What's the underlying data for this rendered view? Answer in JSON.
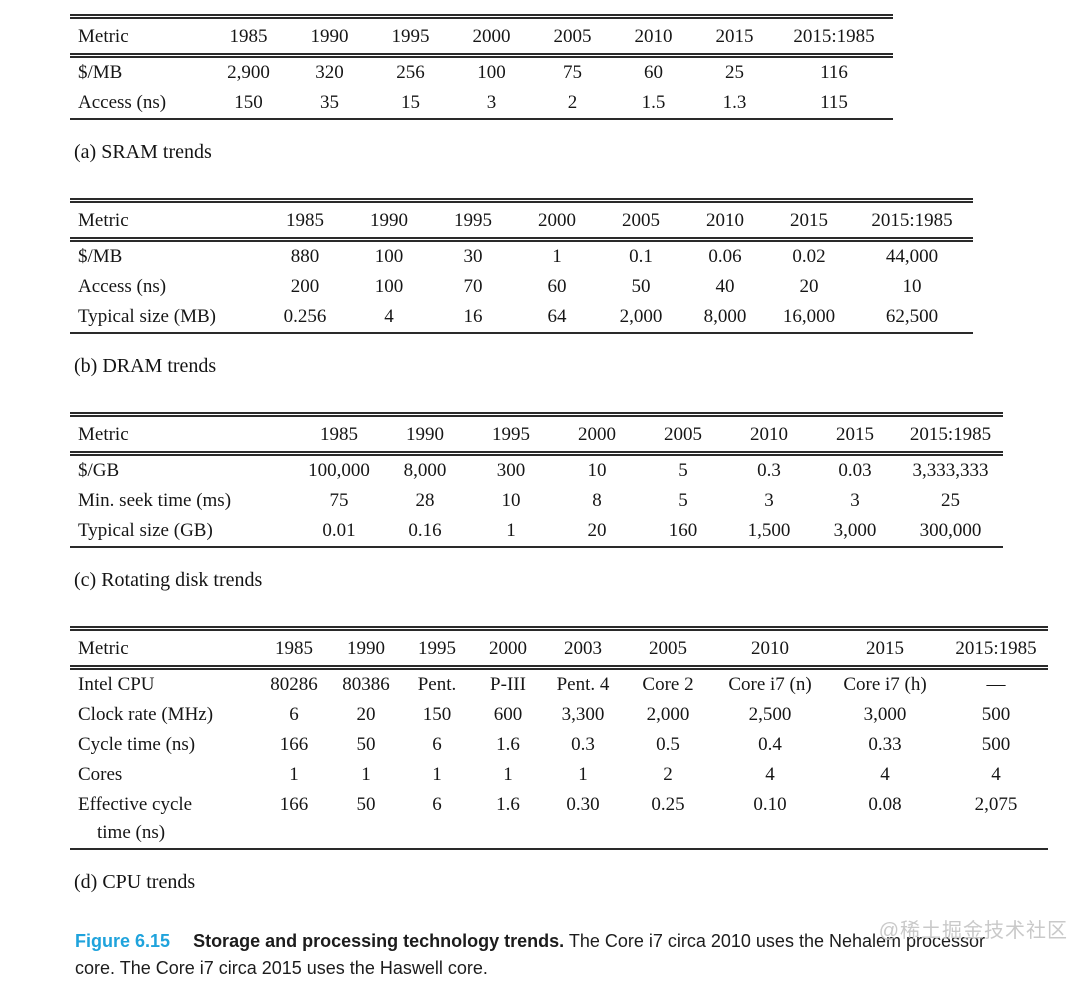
{
  "tables": [
    {
      "id": "a",
      "caption": "(a) SRAM trends",
      "headers": [
        "Metric",
        "1985",
        "1990",
        "1995",
        "2000",
        "2005",
        "2010",
        "2015",
        "2015:1985"
      ],
      "rows": [
        [
          "$/MB",
          "2,900",
          "320",
          "256",
          "100",
          "75",
          "60",
          "25",
          "116"
        ],
        [
          "Access (ns)",
          "150",
          "35",
          "15",
          "3",
          "2",
          "1.5",
          "1.3",
          "115"
        ]
      ]
    },
    {
      "id": "b",
      "caption": "(b) DRAM trends",
      "headers": [
        "Metric",
        "1985",
        "1990",
        "1995",
        "2000",
        "2005",
        "2010",
        "2015",
        "2015:1985"
      ],
      "rows": [
        [
          "$/MB",
          "880",
          "100",
          "30",
          "1",
          "0.1",
          "0.06",
          "0.02",
          "44,000"
        ],
        [
          "Access (ns)",
          "200",
          "100",
          "70",
          "60",
          "50",
          "40",
          "20",
          "10"
        ],
        [
          "Typical size (MB)",
          "0.256",
          "4",
          "16",
          "64",
          "2,000",
          "8,000",
          "16,000",
          "62,500"
        ]
      ]
    },
    {
      "id": "c",
      "caption": "(c) Rotating disk trends",
      "headers": [
        "Metric",
        "1985",
        "1990",
        "1995",
        "2000",
        "2005",
        "2010",
        "2015",
        "2015:1985"
      ],
      "rows": [
        [
          "$/GB",
          "100,000",
          "8,000",
          "300",
          "10",
          "5",
          "0.3",
          "0.03",
          "3,333,333"
        ],
        [
          "Min. seek time (ms)",
          "75",
          "28",
          "10",
          "8",
          "5",
          "3",
          "3",
          "25"
        ],
        [
          "Typical size (GB)",
          "0.01",
          "0.16",
          "1",
          "20",
          "160",
          "1,500",
          "3,000",
          "300,000"
        ]
      ]
    },
    {
      "id": "d",
      "caption": "(d) CPU trends",
      "headers": [
        "Metric",
        "1985",
        "1990",
        "1995",
        "2000",
        "2003",
        "2005",
        "2010",
        "2015",
        "2015:1985"
      ],
      "rows": [
        [
          "Intel CPU",
          "80286",
          "80386",
          "Pent.",
          "P-III",
          "Pent. 4",
          "Core 2",
          "Core i7 (n)",
          "Core i7 (h)",
          "—"
        ],
        [
          "Clock rate (MHz)",
          "6",
          "20",
          "150",
          "600",
          "3,300",
          "2,000",
          "2,500",
          "3,000",
          "500"
        ],
        [
          "Cycle time (ns)",
          "166",
          "50",
          "6",
          "1.6",
          "0.3",
          "0.5",
          "0.4",
          "0.33",
          "500"
        ],
        [
          "Cores",
          "1",
          "1",
          "1",
          "1",
          "1",
          "2",
          "4",
          "4",
          "4"
        ],
        [
          "Effective cycle\n    time (ns)",
          "166",
          "50",
          "6",
          "1.6",
          "0.30",
          "0.25",
          "0.10",
          "0.08",
          "2,075"
        ]
      ]
    }
  ],
  "figure_caption": {
    "label": "Figure 6.15",
    "title": "Storage and processing technology trends.",
    "body_line1": "The Core i7 circa 2010 uses the Nehalem processor",
    "body_line2": "core. The Core i7 circa 2015 uses the Haswell core.",
    "accent_color": "#1fa3dc"
  },
  "watermark": "@稀土掘金技术社区"
}
